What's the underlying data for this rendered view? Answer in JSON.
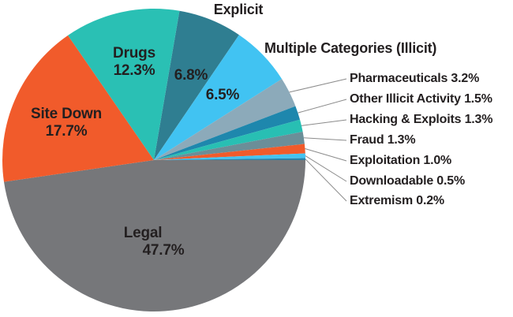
{
  "chart_data": {
    "type": "pie",
    "unit": "percent",
    "direction": "clockwise",
    "start_angle_deg": 9.72,
    "legend_position": "none",
    "slices": [
      {
        "label": "Explicit",
        "value": 6.8,
        "color": "#2f7e91"
      },
      {
        "label": "Multiple Categories (Illicit)",
        "value": 6.5,
        "color": "#41c3f2"
      },
      {
        "label": "Pharmaceuticals",
        "value": 3.2,
        "color": "#8caaba"
      },
      {
        "label": "Other Illicit Activity",
        "value": 1.5,
        "color": "#1e87ad"
      },
      {
        "label": "Hacking & Exploits",
        "value": 1.3,
        "color": "#28bfb3"
      },
      {
        "label": "Fraud",
        "value": 1.3,
        "color": "#6b8e98"
      },
      {
        "label": "Exploitation",
        "value": 1.0,
        "color": "#f15b2b"
      },
      {
        "label": "Downloadable",
        "value": 0.5,
        "color": "#44c3f1"
      },
      {
        "label": "Extremism",
        "value": 0.2,
        "color": "#2a82a8"
      },
      {
        "label": "Legal",
        "value": 47.7,
        "color": "#76777a"
      },
      {
        "label": "Site Down",
        "value": 17.7,
        "color": "#f15b2b"
      },
      {
        "label": "Drugs",
        "value": 12.3,
        "color": "#2ac0b4"
      }
    ]
  },
  "labels": {
    "explicit_title": "Explicit",
    "explicit_pct": "6.8%",
    "multiple_title": "Multiple Categories (Illicit)",
    "multiple_pct": "6.5%",
    "drugs_name": "Drugs",
    "drugs_pct": "12.3%",
    "site_down_name": "Site Down",
    "site_down_pct": "17.7%",
    "legal_name": "Legal",
    "legal_pct": "47.7%",
    "callouts": [
      "Pharmaceuticals 3.2%",
      "Other Illicit Activity 1.5%",
      "Hacking & Exploits 1.3%",
      "Fraud 1.3%",
      "Exploitation 1.0%",
      "Downloadable 0.5%",
      "Extremism 0.2%"
    ]
  },
  "colors": {
    "background": "#ffffff",
    "text": "#231f20",
    "leader_line": "#8b8b8b"
  }
}
